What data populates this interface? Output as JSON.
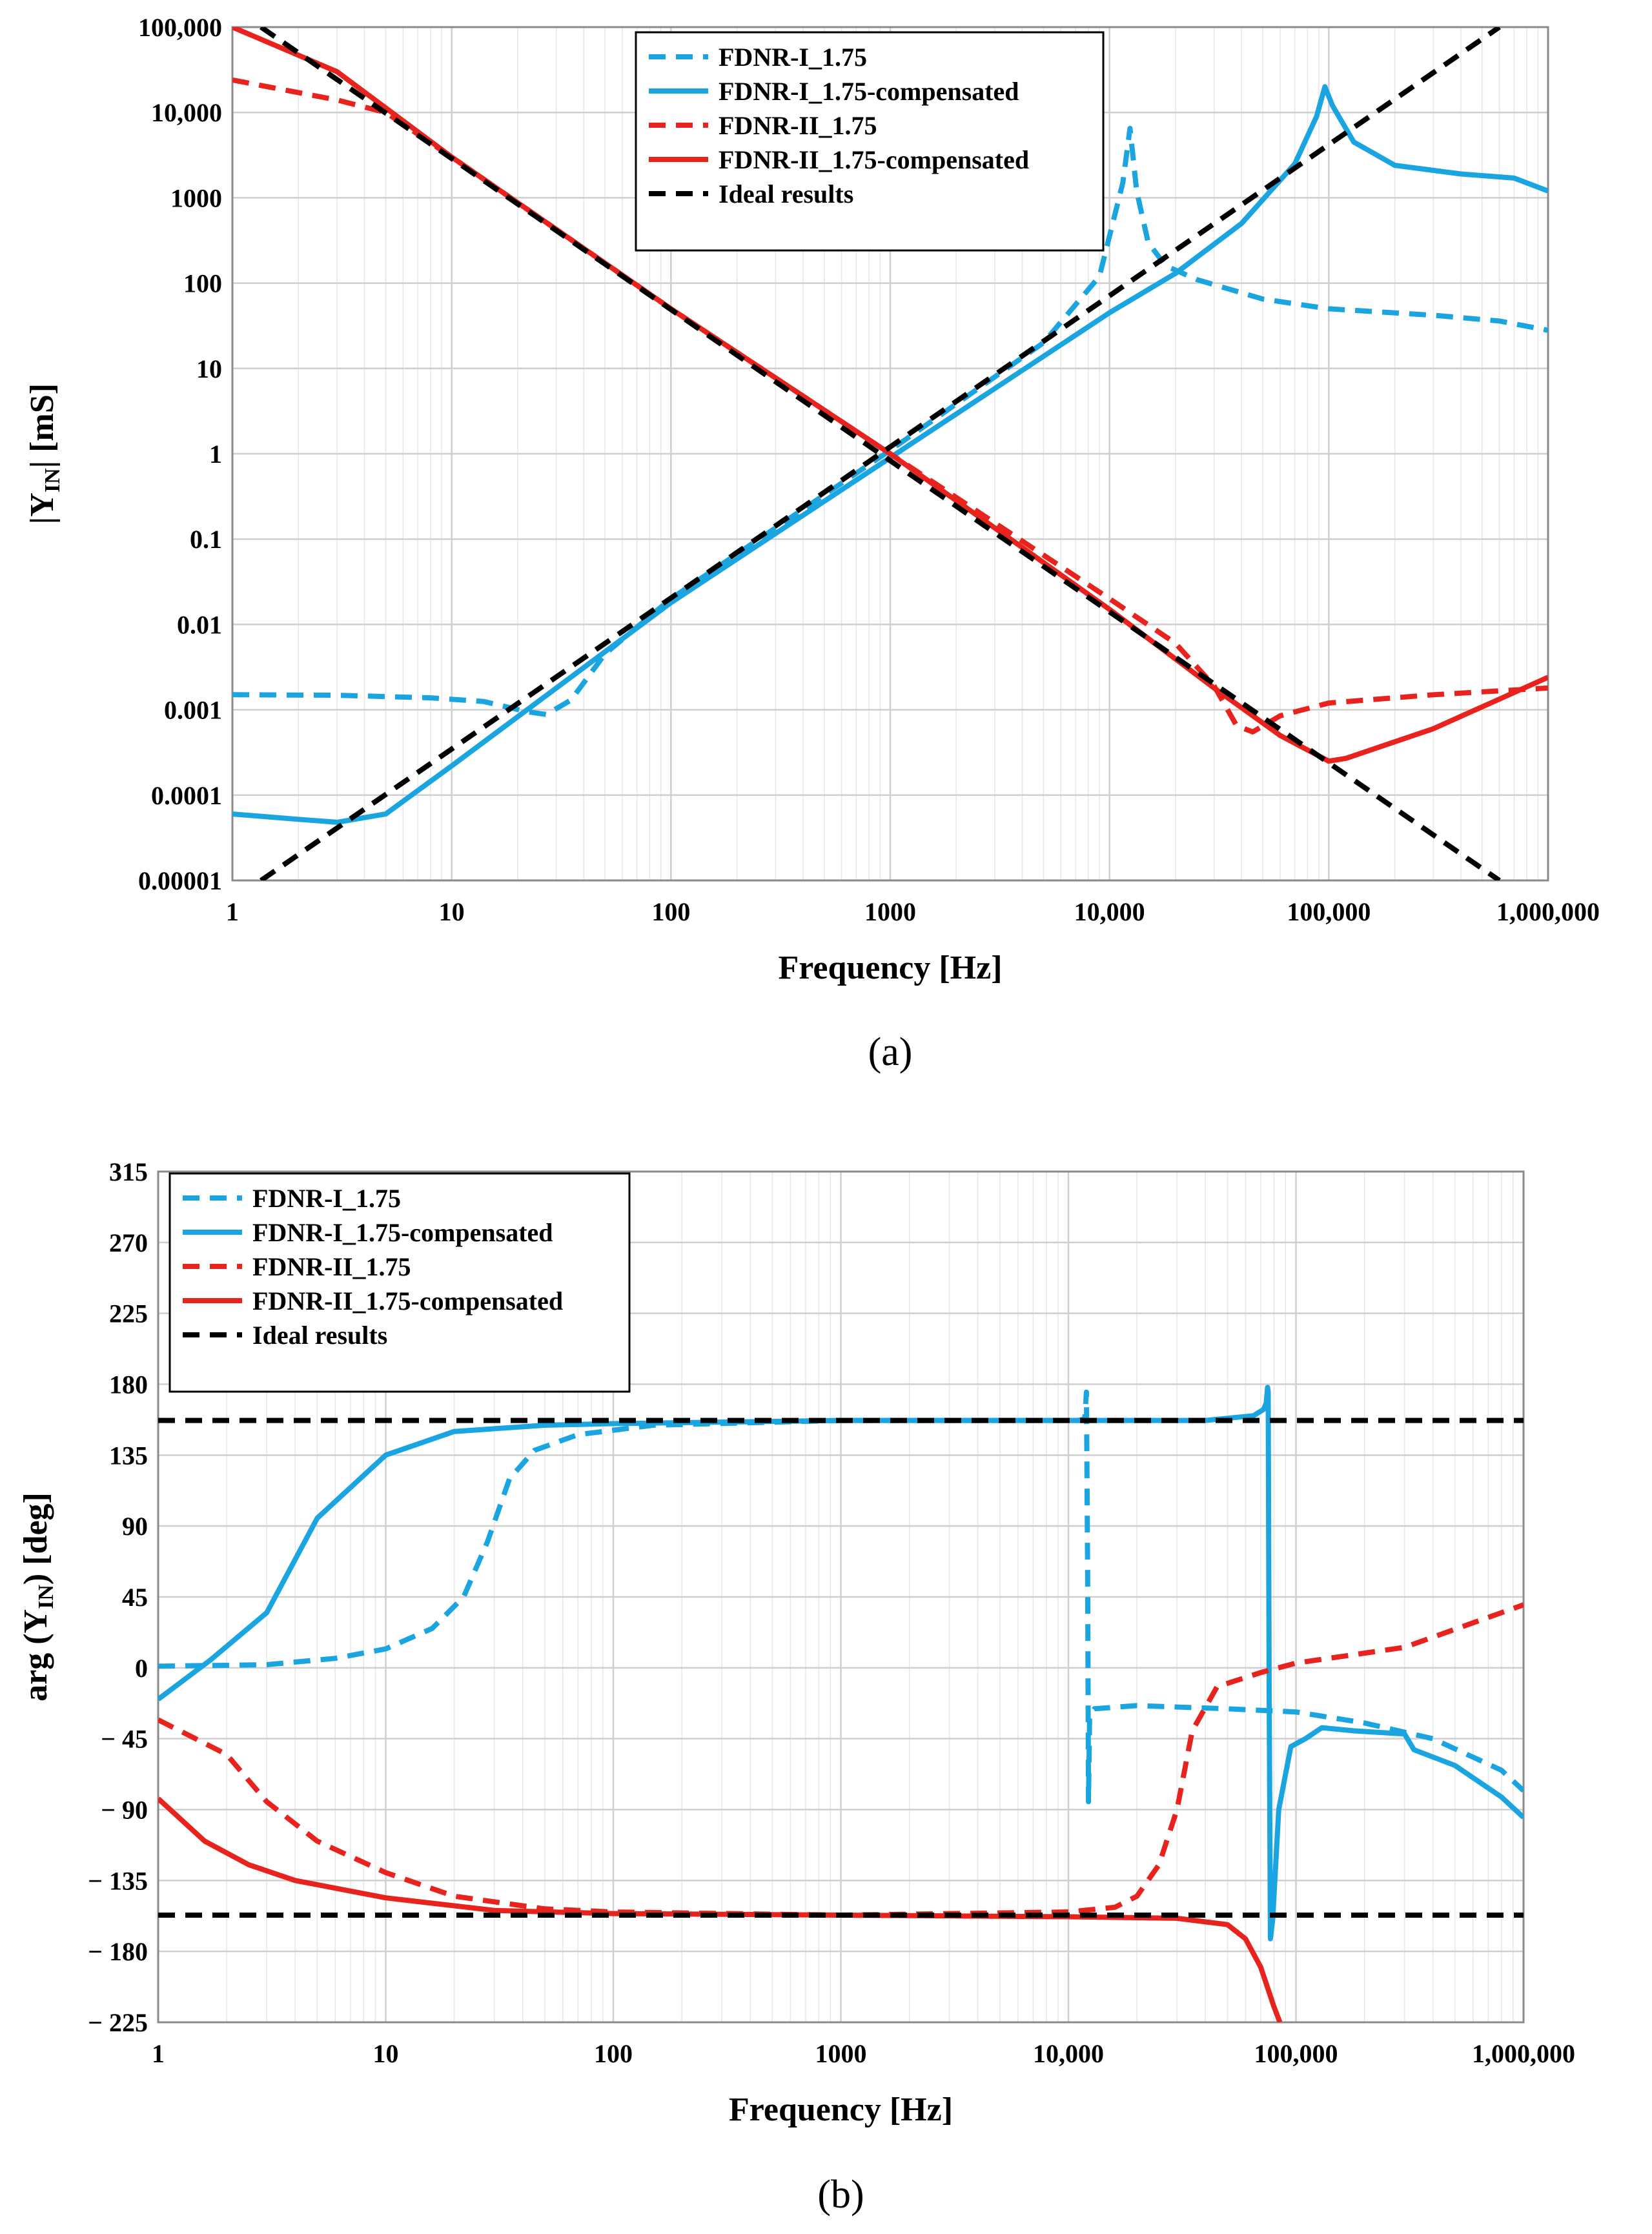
{
  "chart_data": [
    {
      "type": "line",
      "panel_label": "(a)",
      "xlabel": "Frequency [Hz]",
      "ylabel": "|Y_IN| [mS]",
      "xscale": "log",
      "yscale": "log",
      "xlim": [
        1,
        1000000
      ],
      "ylim": [
        1e-05,
        100000
      ],
      "xticks": [
        1,
        10,
        100,
        1000,
        10000,
        100000,
        1000000
      ],
      "xtick_labels": [
        "1",
        "10",
        "100",
        "1000",
        "10,000",
        "100,000",
        "1,000,000"
      ],
      "yticks": [
        1e-05,
        0.0001,
        0.001,
        0.01,
        0.1,
        1,
        10,
        100,
        1000,
        10000,
        100000
      ],
      "ytick_labels": [
        "0.00001",
        "0.0001",
        "0.001",
        "0.01",
        "0.1",
        "1",
        "10",
        "100",
        "1000",
        "10,000",
        "100,000"
      ],
      "legend_position": "top-center",
      "grid": true,
      "series": [
        {
          "name": "FDNR-I_1.75",
          "color": "#1aa5e0",
          "dash": "dashed",
          "points": [
            [
              1,
              0.0015
            ],
            [
              3,
              0.00148
            ],
            [
              8,
              0.00138
            ],
            [
              14,
              0.00125
            ],
            [
              22,
              0.00095
            ],
            [
              27,
              0.00088
            ],
            [
              35,
              0.0013
            ],
            [
              50,
              0.0045
            ],
            [
              100,
              0.02
            ],
            [
              1000,
              1.1
            ],
            [
              5000,
              20
            ],
            [
              9000,
              120
            ],
            [
              11500,
              1500
            ],
            [
              12400,
              6500
            ],
            [
              13300,
              1200
            ],
            [
              15000,
              300
            ],
            [
              18000,
              160
            ],
            [
              25000,
              110
            ],
            [
              50000,
              65
            ],
            [
              100000,
              50
            ],
            [
              300000,
              42
            ],
            [
              600000,
              36
            ],
            [
              1000000,
              28
            ]
          ]
        },
        {
          "name": "FDNR-I_1.75-compensated",
          "color": "#1aa5e0",
          "dash": "solid",
          "points": [
            [
              1,
              6e-05
            ],
            [
              2,
              5.2e-05
            ],
            [
              3,
              4.8e-05
            ],
            [
              5,
              6e-05
            ],
            [
              10,
              0.00022
            ],
            [
              100,
              0.018
            ],
            [
              1000,
              0.9
            ],
            [
              10000,
              45
            ],
            [
              20000,
              130
            ],
            [
              40000,
              500
            ],
            [
              70000,
              2500
            ],
            [
              88000,
              9000
            ],
            [
              96000,
              20000
            ],
            [
              104000,
              12000
            ],
            [
              130000,
              4500
            ],
            [
              200000,
              2400
            ],
            [
              400000,
              1900
            ],
            [
              700000,
              1700
            ],
            [
              1000000,
              1200
            ]
          ]
        },
        {
          "name": "FDNR-II_1.75",
          "color": "#e8231e",
          "dash": "dashed",
          "points": [
            [
              1,
              24000
            ],
            [
              3,
              14000
            ],
            [
              5,
              10000
            ],
            [
              10,
              3000
            ],
            [
              100,
              50
            ],
            [
              1000,
              1
            ],
            [
              10000,
              0.02
            ],
            [
              20000,
              0.006
            ],
            [
              30000,
              0.0019
            ],
            [
              38000,
              0.00065
            ],
            [
              45000,
              0.00055
            ],
            [
              60000,
              0.00085
            ],
            [
              100000,
              0.0012
            ],
            [
              300000,
              0.0015
            ],
            [
              1000000,
              0.0018
            ]
          ]
        },
        {
          "name": "FDNR-II_1.75-compensated",
          "color": "#e8231e",
          "dash": "solid",
          "points": [
            [
              1,
              100000
            ],
            [
              3,
              30000
            ],
            [
              10,
              3000
            ],
            [
              100,
              50
            ],
            [
              1000,
              1
            ],
            [
              10000,
              0.015
            ],
            [
              30000,
              0.0018
            ],
            [
              60000,
              0.0005
            ],
            [
              100000,
              0.00025
            ],
            [
              120000,
              0.00027
            ],
            [
              300000,
              0.0006
            ],
            [
              1000000,
              0.0024
            ]
          ]
        },
        {
          "name": "Ideal results",
          "color": "#000000",
          "dash": "dashed",
          "points_upper": [
            [
              1.35,
              100000
            ],
            [
              600000,
              1e-05
            ]
          ],
          "points_lower": [
            [
              1.35,
              1e-05
            ],
            [
              600000,
              100000
            ]
          ]
        }
      ]
    },
    {
      "type": "line",
      "panel_label": "(b)",
      "xlabel": "Frequency [Hz]",
      "ylabel": "arg (Y_IN) [deg]",
      "xscale": "log",
      "yscale": "linear",
      "xlim": [
        1,
        1000000
      ],
      "ylim": [
        -225,
        315
      ],
      "xticks": [
        1,
        10,
        100,
        1000,
        10000,
        100000,
        1000000
      ],
      "xtick_labels": [
        "1",
        "10",
        "100",
        "1000",
        "10,000",
        "100,000",
        "1,000,000"
      ],
      "yticks": [
        315,
        270,
        225,
        180,
        135,
        90,
        45,
        0,
        -45,
        -90,
        -135,
        -180,
        -225
      ],
      "ytick_labels": [
        "315",
        "270",
        "225",
        "180",
        "135",
        "90",
        "45",
        "0",
        "− 45",
        "− 90",
        "− 135",
        "− 180",
        "− 225"
      ],
      "legend_position": "top-left",
      "grid": true,
      "series": [
        {
          "name": "FDNR-I_1.75",
          "color": "#1aa5e0",
          "dash": "dashed",
          "points": [
            [
              1,
              1
            ],
            [
              3,
              2
            ],
            [
              6,
              6
            ],
            [
              10,
              12
            ],
            [
              16,
              25
            ],
            [
              22,
              45
            ],
            [
              28,
              80
            ],
            [
              35,
              120
            ],
            [
              45,
              138
            ],
            [
              70,
              148
            ],
            [
              150,
              154
            ],
            [
              1000,
              157
            ],
            [
              11000,
              157
            ],
            [
              11800,
              158
            ],
            [
              12000,
              175
            ],
            [
              12150,
              60
            ],
            [
              12250,
              -85
            ],
            [
              12400,
              -30
            ],
            [
              13000,
              -26
            ],
            [
              20000,
              -24
            ],
            [
              50000,
              -26
            ],
            [
              100000,
              -28
            ],
            [
              200000,
              -35
            ],
            [
              400000,
              -45
            ],
            [
              800000,
              -65
            ],
            [
              1000000,
              -78
            ]
          ]
        },
        {
          "name": "FDNR-I_1.75-compensated",
          "color": "#1aa5e0",
          "dash": "solid",
          "points": [
            [
              1,
              -20
            ],
            [
              1.7,
              5
            ],
            [
              3,
              35
            ],
            [
              5,
              95
            ],
            [
              10,
              135
            ],
            [
              20,
              150
            ],
            [
              50,
              154
            ],
            [
              100,
              155
            ],
            [
              1000,
              157
            ],
            [
              10000,
              157
            ],
            [
              40000,
              157
            ],
            [
              65000,
              160
            ],
            [
              72000,
              164
            ],
            [
              74000,
              168
            ],
            [
              75000,
              178
            ],
            [
              75500,
              175
            ],
            [
              76200,
              -10
            ],
            [
              77200,
              -172
            ],
            [
              79000,
              -160
            ],
            [
              84000,
              -90
            ],
            [
              95000,
              -50
            ],
            [
              110000,
              -45
            ],
            [
              130000,
              -38
            ],
            [
              180000,
              -40
            ],
            [
              300000,
              -42
            ],
            [
              330000,
              -52
            ],
            [
              500000,
              -62
            ],
            [
              800000,
              -82
            ],
            [
              1000000,
              -95
            ]
          ]
        },
        {
          "name": "FDNR-II_1.75",
          "color": "#e8231e",
          "dash": "dashed",
          "points": [
            [
              1,
              -33
            ],
            [
              2,
              -55
            ],
            [
              3,
              -85
            ],
            [
              5,
              -110
            ],
            [
              10,
              -130
            ],
            [
              20,
              -145
            ],
            [
              50,
              -153
            ],
            [
              100,
              -155
            ],
            [
              1000,
              -157
            ],
            [
              10000,
              -155
            ],
            [
              16000,
              -152
            ],
            [
              20000,
              -145
            ],
            [
              25000,
              -125
            ],
            [
              30000,
              -90
            ],
            [
              35000,
              -40
            ],
            [
              45000,
              -12
            ],
            [
              70000,
              -3
            ],
            [
              100000,
              3
            ],
            [
              300000,
              13
            ],
            [
              1000000,
              40
            ]
          ]
        },
        {
          "name": "FDNR-II_1.75-compensated",
          "color": "#e8231e",
          "dash": "solid",
          "points": [
            [
              1,
              -83
            ],
            [
              1.6,
              -110
            ],
            [
              2.5,
              -125
            ],
            [
              4,
              -135
            ],
            [
              10,
              -146
            ],
            [
              30,
              -154
            ],
            [
              100,
              -156
            ],
            [
              1000,
              -157
            ],
            [
              10000,
              -158
            ],
            [
              30000,
              -159
            ],
            [
              50000,
              -163
            ],
            [
              60000,
              -172
            ],
            [
              70000,
              -190
            ],
            [
              80000,
              -215
            ],
            [
              85000,
              -225
            ]
          ]
        },
        {
          "name": "Ideal results",
          "color": "#000000",
          "dash": "dashed",
          "y_constant": [
            157,
            -157
          ]
        }
      ]
    }
  ]
}
